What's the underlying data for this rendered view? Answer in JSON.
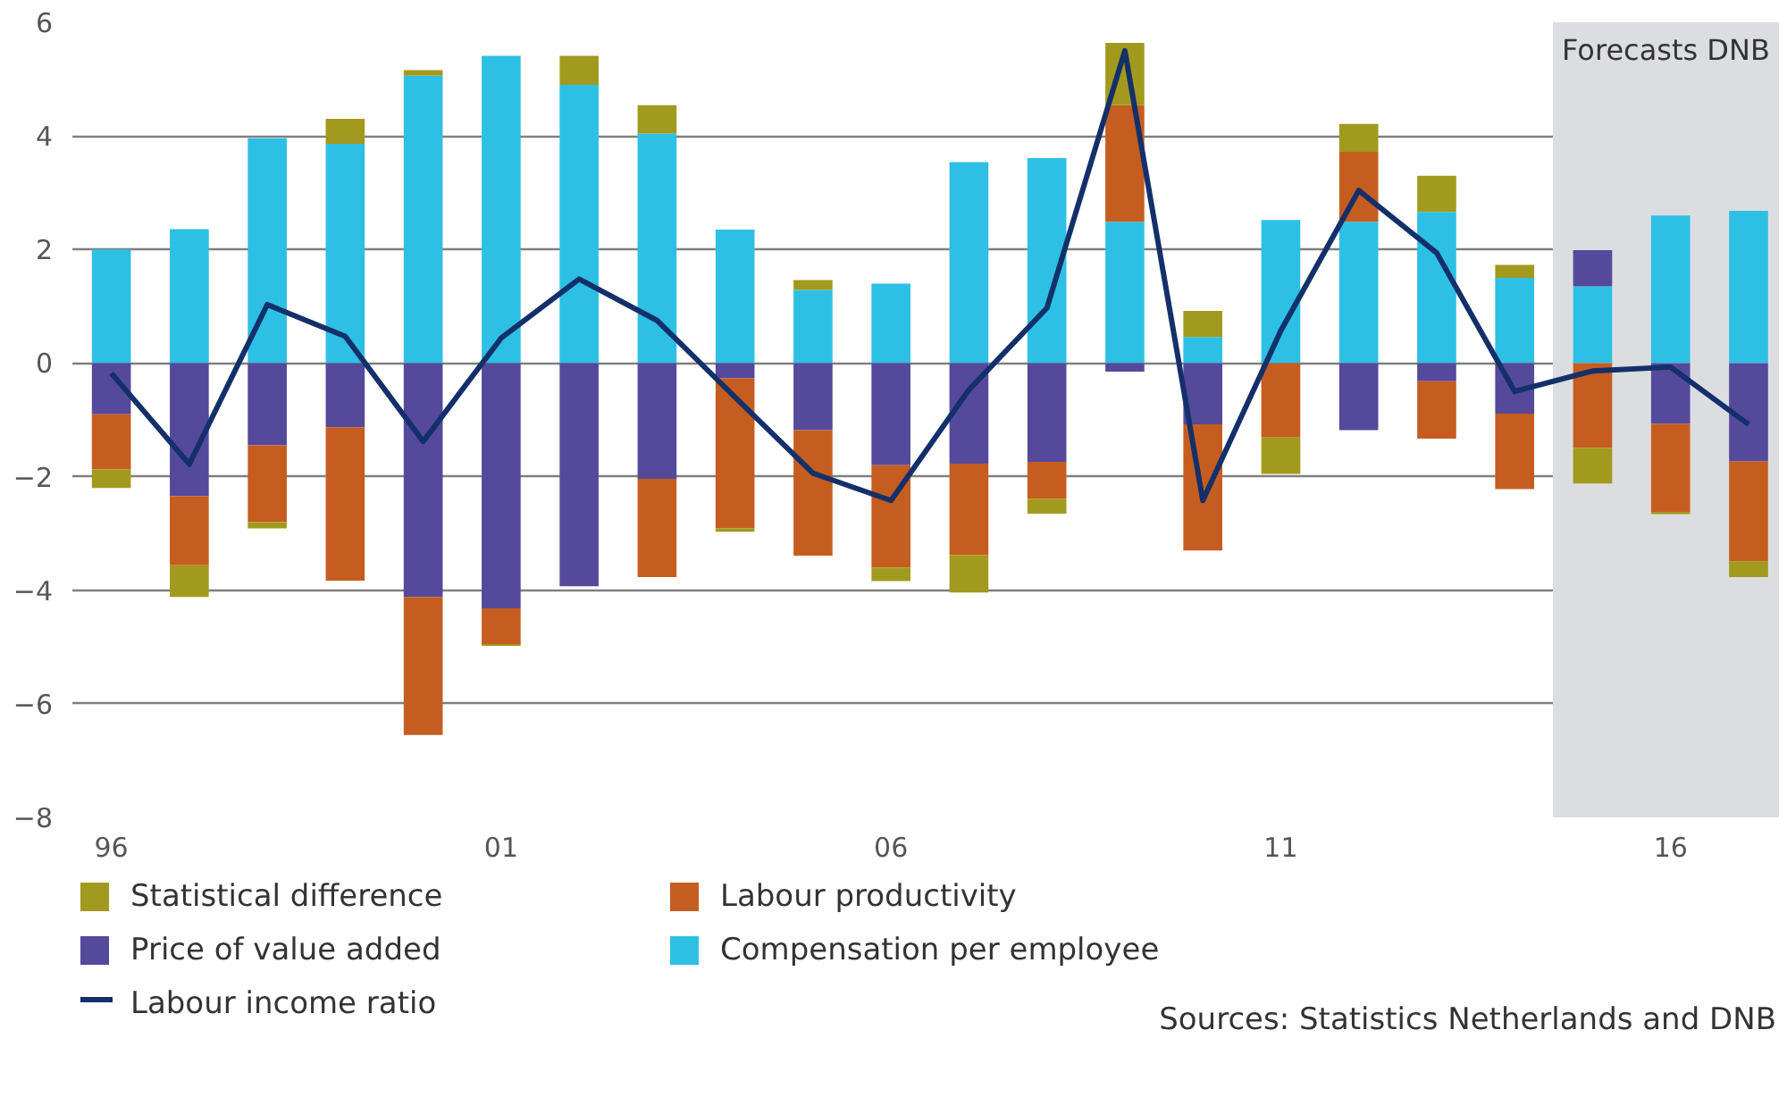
{
  "chart_data": {
    "type": "bar",
    "stacked": true,
    "x": [
      1996,
      1997,
      1998,
      1999,
      2000,
      2001,
      2002,
      2003,
      2004,
      2005,
      2006,
      2007,
      2008,
      2009,
      2010,
      2011,
      2012,
      2013,
      2014,
      2015,
      2016,
      2017
    ],
    "series": [
      {
        "name": "Compensation per employee",
        "color": "#2ec0e4",
        "values": [
          2.0,
          2.36,
          3.96,
          3.86,
          5.06,
          5.41,
          4.9,
          4.04,
          2.35,
          1.29,
          1.4,
          3.54,
          3.61,
          2.49,
          0.46,
          2.52,
          2.49,
          2.66,
          1.5,
          1.35,
          2.6,
          2.68
        ]
      },
      {
        "name": "Price of value added",
        "color": "#55499c",
        "values": [
          -0.9,
          -2.34,
          -1.45,
          -1.13,
          -4.12,
          -4.32,
          -3.93,
          -2.04,
          -0.27,
          -1.18,
          -1.8,
          -1.77,
          -1.74,
          -0.15,
          -1.08,
          null,
          -1.18,
          -0.32,
          -0.89,
          0.64,
          -1.07,
          -1.73
        ]
      },
      {
        "name": "Labour productivity",
        "color": "#c65d20",
        "values": [
          -0.97,
          -1.22,
          -1.35,
          -2.7,
          -2.43,
          -0.63,
          null,
          -1.73,
          -2.64,
          -2.21,
          -1.8,
          -1.61,
          -0.65,
          2.05,
          -2.22,
          -1.31,
          1.23,
          -1.01,
          -1.33,
          -1.49,
          -1.55,
          -1.76
        ]
      },
      {
        "name": "Statistical difference",
        "color": "#a29a1e",
        "values": [
          -0.33,
          -0.56,
          -0.11,
          0.44,
          0.1,
          -0.03,
          0.51,
          0.5,
          -0.06,
          0.17,
          -0.24,
          -0.66,
          -0.26,
          1.1,
          0.46,
          -0.64,
          0.49,
          0.64,
          0.23,
          -0.63,
          -0.04,
          -0.28
        ]
      },
      {
        "name": "Labour income ratio",
        "type": "line",
        "color": "#14306b",
        "values": [
          -0.18,
          -1.78,
          1.03,
          0.47,
          -1.38,
          0.44,
          1.48,
          0.75,
          -0.6,
          -1.94,
          -2.42,
          -0.47,
          0.97,
          5.5,
          -2.42,
          0.57,
          3.04,
          1.94,
          -0.5,
          -0.14,
          -0.07,
          -1.08
        ]
      }
    ],
    "xlim": [
      1995.5,
      2017.39
    ],
    "xticks": [
      {
        "value": 1996,
        "label": "96"
      },
      {
        "value": 2001,
        "label": "01"
      },
      {
        "value": 2006,
        "label": "06"
      },
      {
        "value": 2011,
        "label": "11"
      },
      {
        "value": 2016,
        "label": "16"
      }
    ],
    "ylim": [
      -8,
      6
    ],
    "yticks": [
      -8,
      -6,
      -4,
      -2,
      0,
      2,
      4,
      6
    ],
    "grid": "y",
    "legend": "bottom",
    "bands": [
      {
        "axis": "x",
        "from": 2014.49,
        "to": 2017.39,
        "label": "Forecasts DNB",
        "color": "#dcdde0"
      }
    ],
    "annotations": [
      "Sources: Statistics Netherlands and DNB"
    ]
  }
}
